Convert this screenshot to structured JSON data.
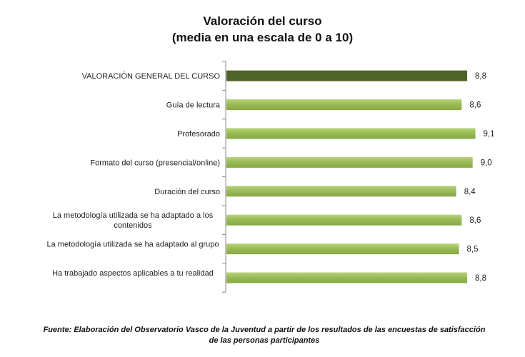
{
  "chart_data": {
    "type": "bar",
    "orientation": "horizontal",
    "title": "Valoración del curso",
    "subtitle": "(media en una escala de 0 a 10)",
    "categories": [
      "VALORACIÓN GENERAL DEL CURSO",
      "Guía de lectura",
      "Profesorado",
      "Formato del curso (presencial/online)",
      "Duración del curso",
      "La metodología utilizada se ha adaptado a los contenidos",
      "La metodología utilizada se ha adaptado al grupo",
      "Ha trabajado aspectos aplicables a tu realidad"
    ],
    "values": [
      8.8,
      8.6,
      9.1,
      9.0,
      8.4,
      8.6,
      8.5,
      8.8
    ],
    "data_labels": [
      "8,8",
      "8,6",
      "9,1",
      "9,0",
      "8,4",
      "8,6",
      "8,5",
      "8,8"
    ],
    "xlim": [
      0,
      10
    ],
    "grid": false,
    "legend": "none",
    "colors": {
      "highlight": "#4f6228",
      "bar": "#9bbb59",
      "bar_light": "#b9d47a"
    }
  },
  "source": "Fuente: Elaboración del Observatorio Vasco de la Juventud a partir de los resultados de las encuestas de satisfacción de las personas participantes"
}
